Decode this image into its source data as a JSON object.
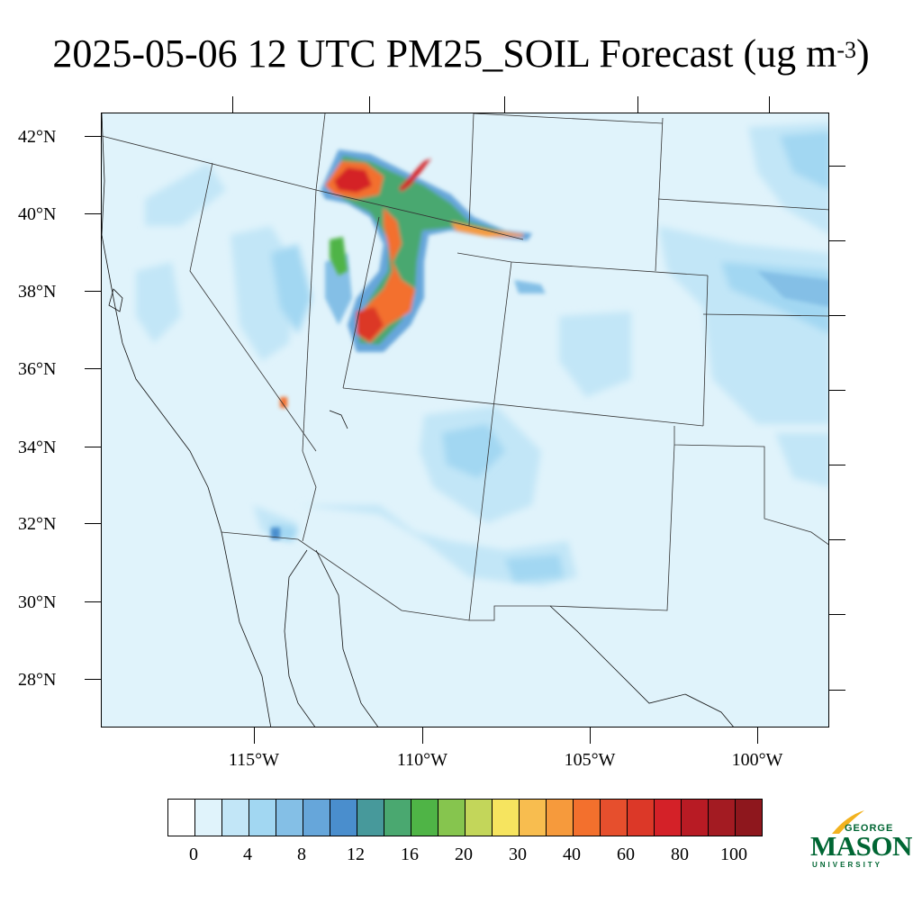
{
  "title": {
    "main": "2025-05-06 12 UTC PM25_SOIL Forecast (ug m",
    "exponent": "-3",
    "close": ")"
  },
  "latitude_labels": [
    "42°N",
    "40°N",
    "38°N",
    "36°N",
    "34°N",
    "32°N",
    "30°N",
    "28°N"
  ],
  "longitude_labels": [
    "115°W",
    "110°W",
    "105°W",
    "100°W"
  ],
  "colorbar": {
    "labels": [
      "0",
      "4",
      "8",
      "12",
      "16",
      "20",
      "30",
      "40",
      "60",
      "80",
      "100"
    ],
    "colors": [
      "#ffffff",
      "#e0f3fb",
      "#c2e6f7",
      "#a2d7f2",
      "#84bfe6",
      "#66a6da",
      "#4a8ecd",
      "#47999b",
      "#4aa870",
      "#4fb446",
      "#86c54e",
      "#c3d65a",
      "#f6e45f",
      "#f8bd4f",
      "#f69a3c",
      "#f3702d",
      "#e64f2d",
      "#dc3828",
      "#d42128",
      "#b81b24",
      "#a31b22",
      "#8e171d"
    ]
  },
  "logo": {
    "line1": "GEORGE",
    "line2": "MASON",
    "line3": "UNIVERSITY",
    "accent_color": "#f2b21f",
    "brand_color": "#006633"
  },
  "map": {
    "background_color": "#e0f3fb",
    "variable": "PM25_SOIL"
  }
}
